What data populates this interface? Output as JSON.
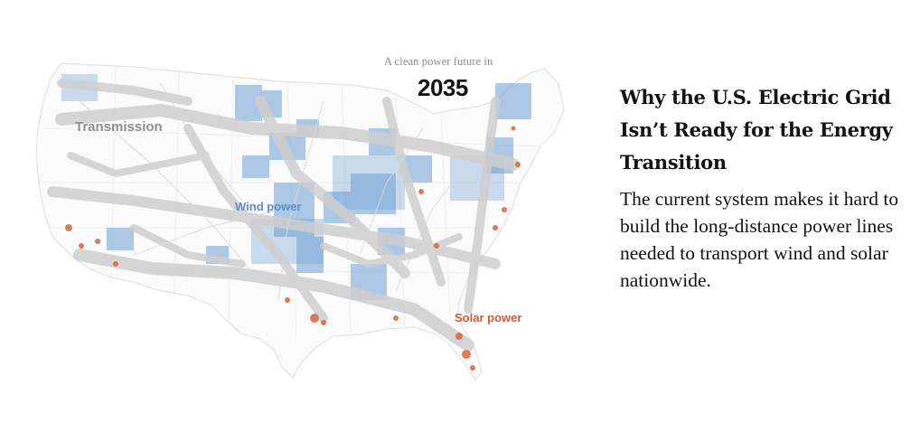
{
  "map": {
    "overtitle": "A clean power future in",
    "year": "2035",
    "labels": {
      "transmission": "Transmission",
      "wind": "Wind power",
      "solar": "Solar power"
    },
    "colors": {
      "transmission": "#d6d6d6",
      "wind": "#6e9fd4",
      "solar": "#d9643c",
      "outline": "#e2e2e2"
    }
  },
  "article": {
    "headline": "Why the U.S. Electric Grid Isn’t Ready for the Energy Transition",
    "summary": "The current system makes it hard to build the long-distance power lines needed to transport wind and solar nationwide."
  }
}
